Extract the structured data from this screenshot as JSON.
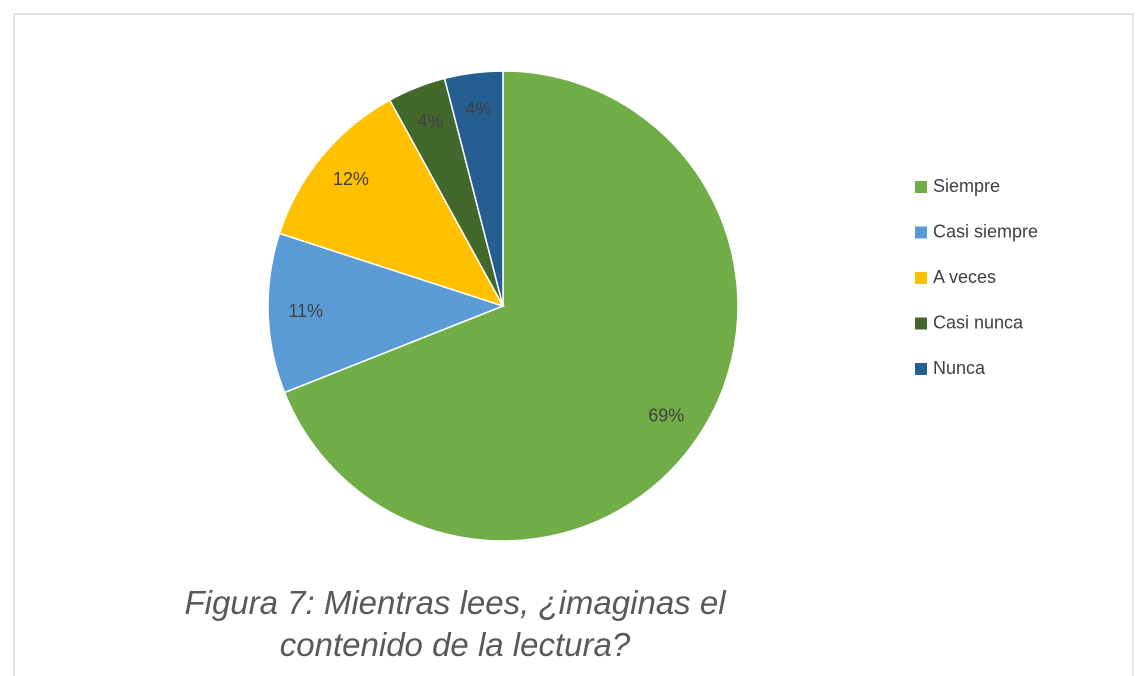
{
  "chart_data": {
    "type": "pie",
    "caption": "Figura 7: Mientras lees, ¿imaginas el contenido de la lectura?",
    "categories": [
      "Siempre",
      "Casi siempre",
      "A veces",
      "Casi nunca",
      "Nunca"
    ],
    "values": [
      69,
      11,
      12,
      4,
      4
    ],
    "value_labels": [
      "69%",
      "11%",
      "12%",
      "4%",
      "4%"
    ],
    "colors": [
      "#70ad47",
      "#5b9bd5",
      "#ffc000",
      "#43682b",
      "#255e91"
    ],
    "legend": "right"
  }
}
